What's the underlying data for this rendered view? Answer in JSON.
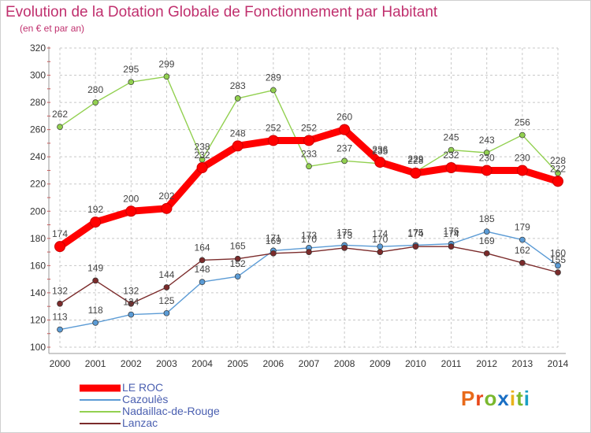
{
  "title": "Evolution de la Dotation Globale de Fonctionnement par Habitant",
  "subtitle": "(en € et par an)",
  "logo": {
    "text": "Proxiti",
    "colors": [
      "#e86a1a",
      "#e8481a",
      "#7ab82e",
      "#1a6fc4",
      "#e8b21a",
      "#7ab82e",
      "#1a9fc4"
    ]
  },
  "chart_data": {
    "type": "line",
    "title": "Evolution de la Dotation Globale de Fonctionnement par Habitant",
    "subtitle": "(en € et par an)",
    "x": [
      "2000",
      "2001",
      "2002",
      "2003",
      "2004",
      "2005",
      "2006",
      "2007",
      "2008",
      "2009",
      "2010",
      "2011",
      "2012",
      "2013",
      "2014"
    ],
    "yticks": [
      100,
      120,
      140,
      160,
      180,
      200,
      220,
      240,
      260,
      280,
      300,
      320
    ],
    "ylim": [
      100,
      320
    ],
    "grid": true,
    "legend_position": "bottom-left",
    "series": [
      {
        "name": "LE ROC",
        "color": "#ff0000",
        "values": [
          174,
          192,
          200,
          202,
          232,
          248,
          252,
          252,
          260,
          236,
          228,
          232,
          230,
          230,
          222
        ]
      },
      {
        "name": "Cazoulès",
        "color": "#5b9bd5",
        "values": [
          113,
          118,
          124,
          125,
          148,
          152,
          171,
          173,
          175,
          174,
          175,
          176,
          185,
          179,
          160
        ]
      },
      {
        "name": "Nadaillac-de-Rouge",
        "color": "#92d050",
        "values": [
          262,
          280,
          295,
          299,
          238,
          283,
          289,
          233,
          237,
          235,
          229,
          245,
          243,
          256,
          228
        ]
      },
      {
        "name": "Lanzac",
        "color": "#7b2b2b",
        "values": [
          132,
          149,
          132,
          144,
          164,
          165,
          169,
          170,
          173,
          170,
          174,
          174,
          169,
          162,
          155
        ]
      }
    ]
  }
}
